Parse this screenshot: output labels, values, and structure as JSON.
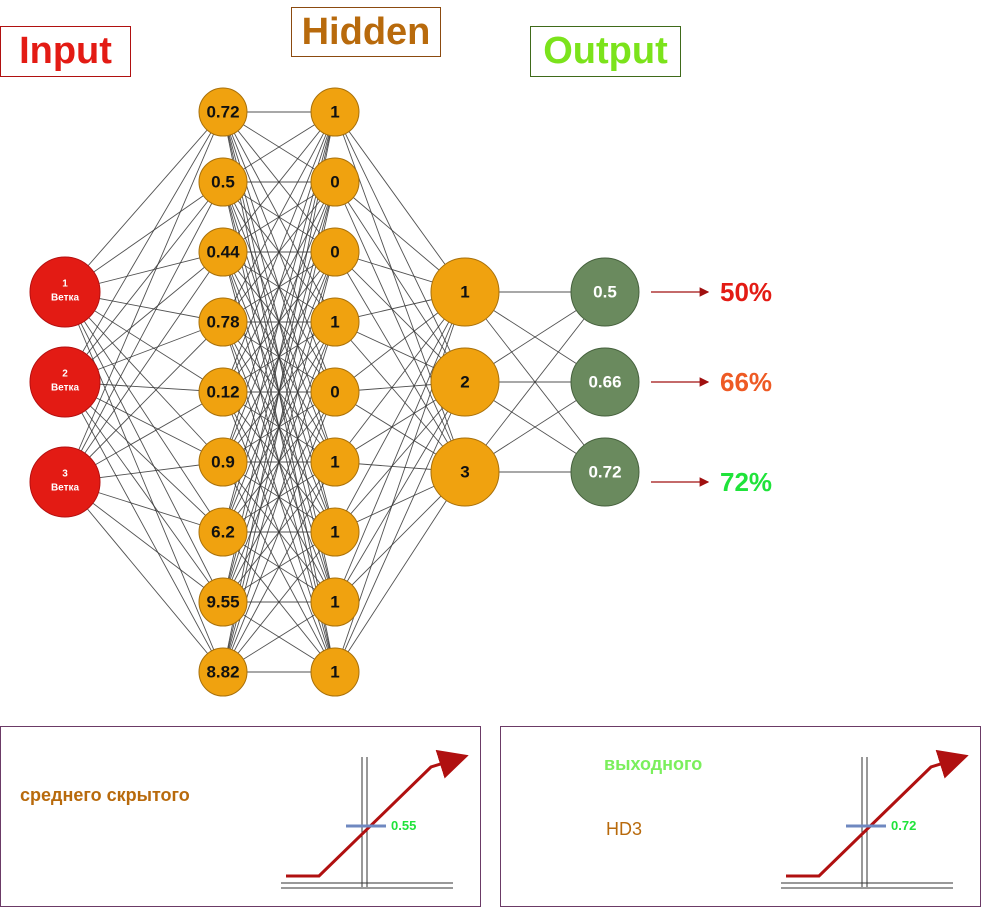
{
  "headers": {
    "input": "Input",
    "hidden": "Hidden",
    "output": "Output"
  },
  "colors": {
    "input_node": "#e31b14",
    "hidden_node": "#f0a20f",
    "output_node": "#6a8a5e",
    "edge": "#333333",
    "arrow": "#a01010",
    "pct_50": "#e31b14",
    "pct_66": "#ee5a24",
    "pct_72": "#1fe33a"
  },
  "input_nodes": [
    {
      "num": "1",
      "label": "Ветка"
    },
    {
      "num": "2",
      "label": "Ветка"
    },
    {
      "num": "3",
      "label": "Ветка"
    }
  ],
  "hidden_layer_1": [
    "0.72",
    "0.5",
    "0.44",
    "0.78",
    "0.12",
    "0.9",
    "6.2",
    "9.55",
    "8.82"
  ],
  "hidden_layer_2": [
    "1",
    "0",
    "0",
    "1",
    "0",
    "1",
    "1",
    "1",
    "1"
  ],
  "hidden_layer_3": [
    "1",
    "2",
    "3"
  ],
  "output_nodes": [
    "0.5",
    "0.66",
    "0.72"
  ],
  "percentages": [
    "50%",
    "66%",
    "72%"
  ],
  "panels": {
    "left": {
      "title": "среднего скрытого",
      "marker_value": "0.55"
    },
    "right": {
      "title": "выходного",
      "subtitle": "HD3",
      "marker_value": "0.72"
    }
  }
}
